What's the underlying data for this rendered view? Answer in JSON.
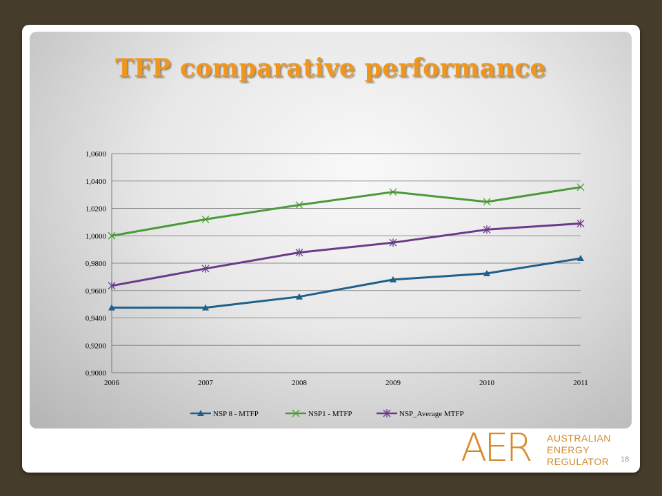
{
  "slide": {
    "title": "TFP comparative performance",
    "page_number": "18",
    "logo": {
      "mark": "AER",
      "lines": [
        "AUSTRALIAN",
        "ENERGY",
        "REGULATOR"
      ]
    }
  },
  "colors": {
    "background": "#463c2c",
    "title": "#f0961c",
    "logo": "#d68a2a"
  },
  "chart_data": {
    "type": "line",
    "x": [
      2006,
      2007,
      2008,
      2009,
      2010,
      2011
    ],
    "xtick_labels": [
      "2006",
      "2007",
      "2008",
      "2009",
      "2010",
      "2011"
    ],
    "ylim": [
      0.9,
      1.06
    ],
    "yticks": [
      0.9,
      0.92,
      0.94,
      0.96,
      0.98,
      1.0,
      1.02,
      1.04,
      1.06
    ],
    "ytick_labels": [
      "0,9000",
      "0,9200",
      "0,9400",
      "0,9600",
      "0,9800",
      "1,0000",
      "1,0200",
      "1,0400",
      "1,0600"
    ],
    "grid": "horizontal",
    "legend_position": "bottom",
    "series": [
      {
        "name": "NSP 8 - MTFP",
        "color": "#1f5f8b",
        "marker": "triangle",
        "values": [
          0.9475,
          0.9475,
          0.9555,
          0.968,
          0.9725,
          0.9835
        ]
      },
      {
        "name": "NSP1 - MTFP",
        "color": "#4a9a38",
        "marker": "x",
        "values": [
          1.0,
          1.012,
          1.0225,
          1.032,
          1.0248,
          1.0355
        ]
      },
      {
        "name": "NSP_Average MTFP",
        "color": "#6a3a8a",
        "marker": "star",
        "values": [
          0.9635,
          0.976,
          0.9878,
          0.995,
          1.0045,
          1.009
        ]
      }
    ]
  }
}
